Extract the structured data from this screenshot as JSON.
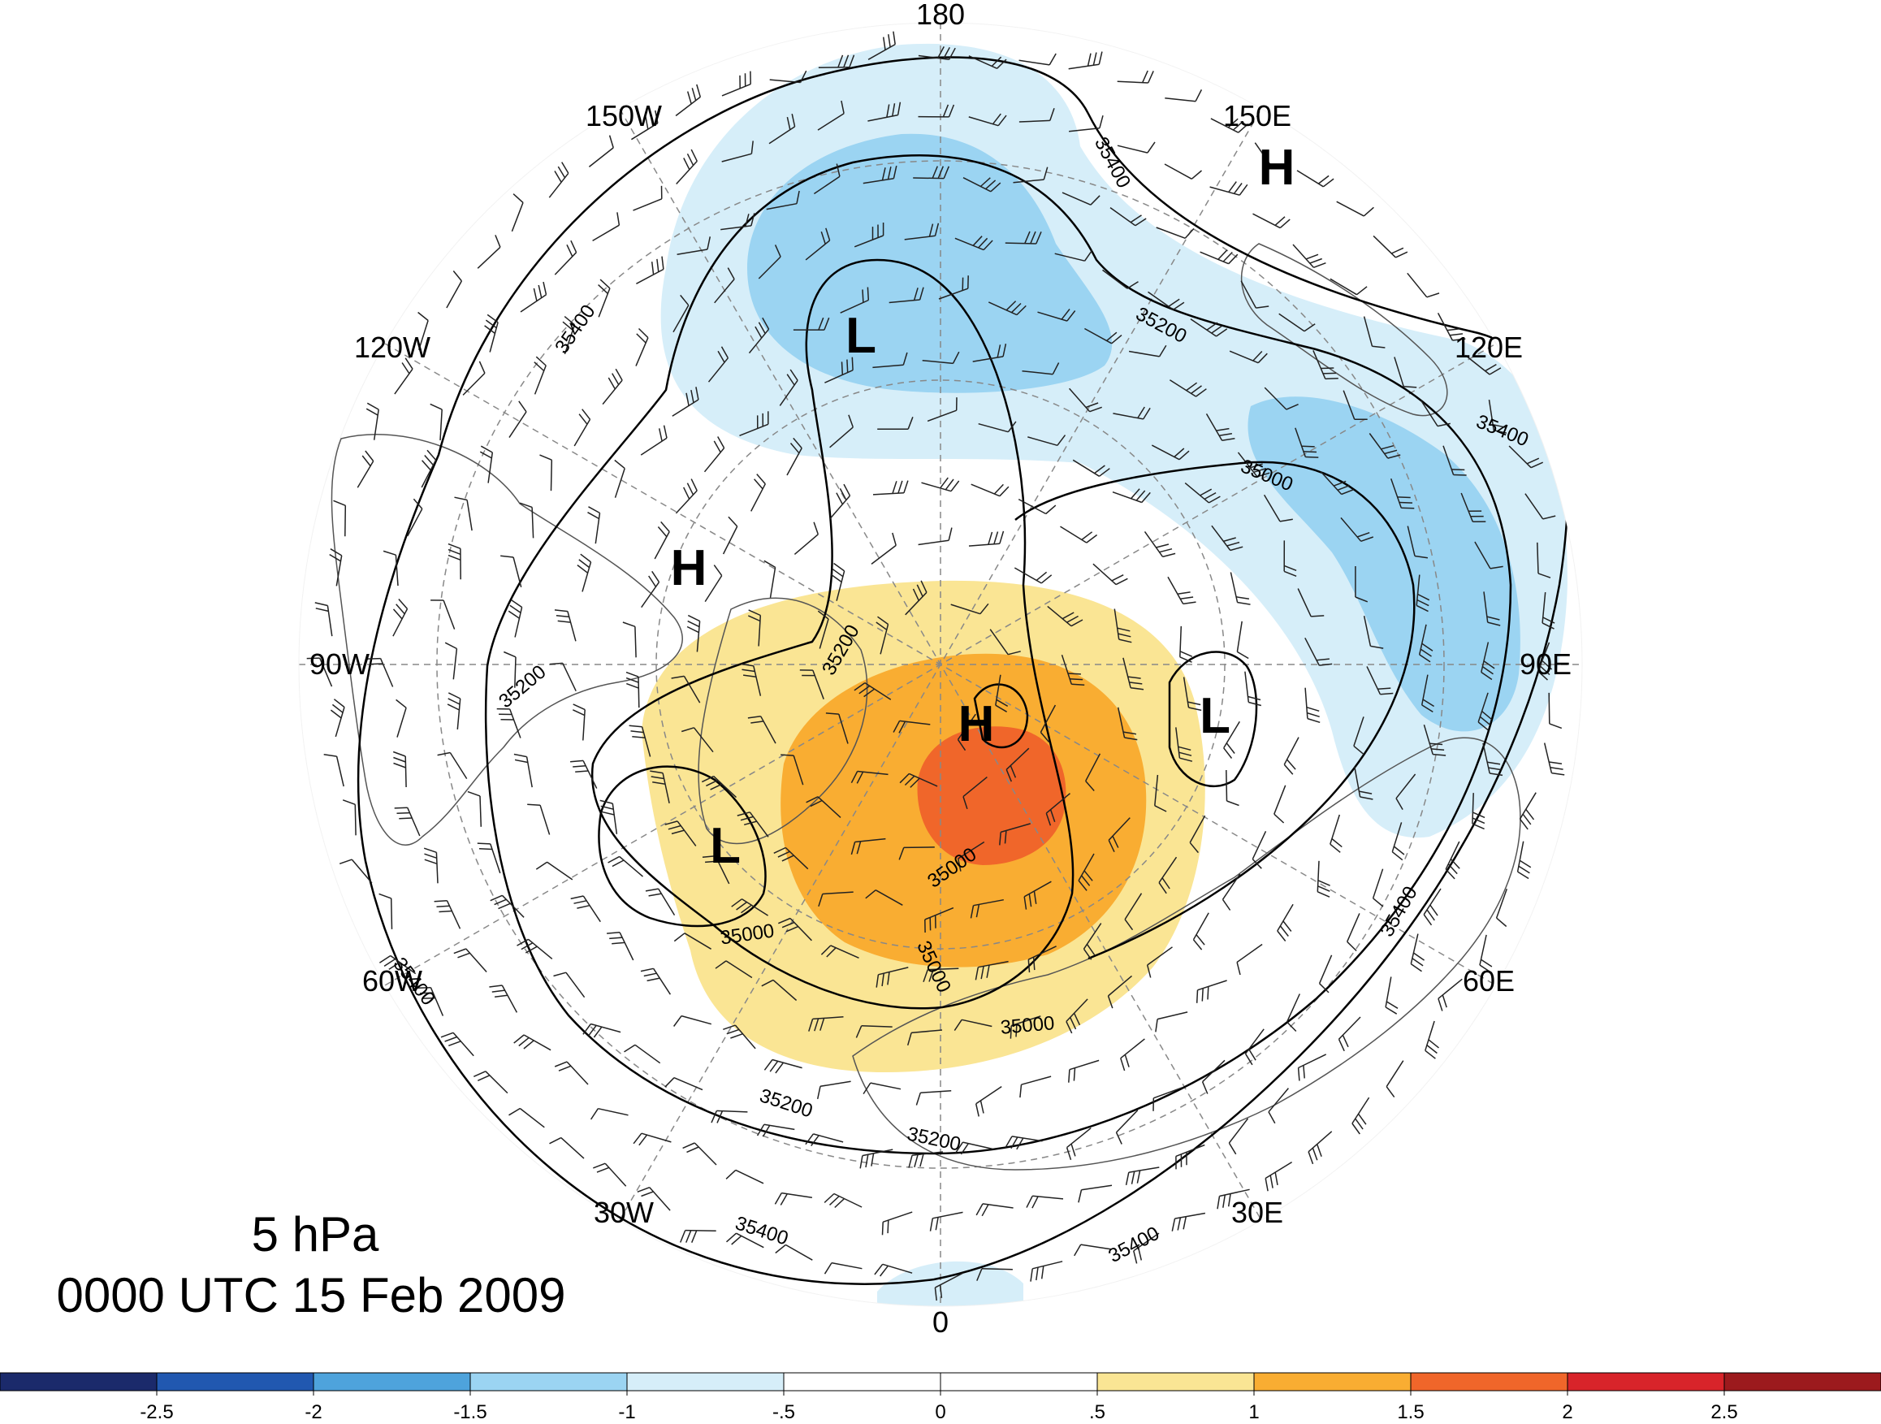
{
  "title_level": "5 hPa",
  "title_time": "0000 UTC 15 Feb 2009",
  "longitude_labels": [
    {
      "text": "180",
      "lon": 180
    },
    {
      "text": "150E",
      "lon": 150
    },
    {
      "text": "120E",
      "lon": 120
    },
    {
      "text": "90E",
      "lon": 90
    },
    {
      "text": "60E",
      "lon": 60
    },
    {
      "text": "30E",
      "lon": 30
    },
    {
      "text": "0",
      "lon": 0
    },
    {
      "text": "30W",
      "lon": -30
    },
    {
      "text": "60W",
      "lon": -60
    },
    {
      "text": "90W",
      "lon": -90
    },
    {
      "text": "120W",
      "lon": -120
    },
    {
      "text": "150W",
      "lon": -150
    }
  ],
  "pressure_centers": [
    {
      "text": "H",
      "name": "high-center-east"
    },
    {
      "text": "L",
      "name": "low-center-pacific"
    },
    {
      "text": "H",
      "name": "high-center-canada"
    },
    {
      "text": "H",
      "name": "high-center-pole"
    },
    {
      "text": "L",
      "name": "low-center-siberia"
    },
    {
      "text": "L",
      "name": "low-center-atlantic"
    }
  ],
  "contour_labels": [
    "35400",
    "35400",
    "35200",
    "35400",
    "35000",
    "35200",
    "35200",
    "35000",
    "35000",
    "35000",
    "35000",
    "35400",
    "35400",
    "35200",
    "35200",
    "35400",
    "35400"
  ],
  "colorbar": {
    "colors": [
      "#1b2a6b",
      "#2158b0",
      "#4ea3dc",
      "#9bd4f2",
      "#d6eef9",
      "#ffffff",
      "#ffffff",
      "#fae594",
      "#f9ad32",
      "#f0662a",
      "#d8242a",
      "#9c1a1d"
    ],
    "ticks": [
      "-2.5",
      "-2",
      "-1.5",
      "-1",
      "-.5",
      "0",
      ".5",
      "1",
      "1.5",
      "2",
      "2.5"
    ]
  },
  "shading_colors": {
    "blue_light": "#d6eef9",
    "blue_mid": "#9bd4f2",
    "yellow": "#fae594",
    "orange": "#f9ad32",
    "red_orange": "#f0662a"
  }
}
